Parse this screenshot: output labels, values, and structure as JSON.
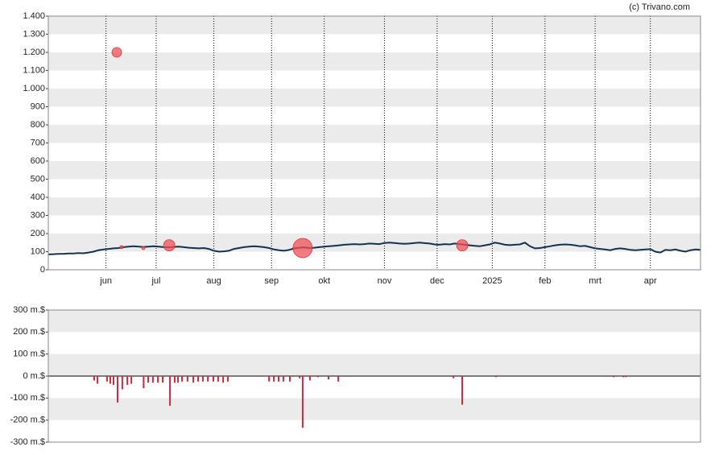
{
  "credit": "(c) Trivano.com",
  "chart_data": [
    {
      "type": "line",
      "x": [
        0,
        2,
        4,
        6,
        8,
        10,
        12,
        14,
        16,
        18,
        20,
        22,
        24,
        26,
        28,
        30,
        32,
        34,
        36,
        38,
        40,
        42,
        44,
        46,
        48,
        50,
        52,
        54,
        56,
        58,
        60,
        62,
        64,
        66,
        68,
        70,
        72,
        74,
        76,
        78,
        80,
        82,
        84,
        86,
        88,
        90,
        92,
        94,
        96,
        98,
        100,
        102,
        104,
        106,
        108,
        110,
        112,
        114,
        116,
        118,
        120,
        122,
        124,
        126,
        128,
        130,
        132,
        134,
        136,
        138,
        140,
        142,
        144,
        146,
        148,
        150,
        152,
        154,
        156,
        158,
        160,
        162,
        164,
        166,
        168,
        170,
        172,
        174,
        176,
        178,
        180,
        182,
        184,
        186,
        188,
        190,
        192,
        194,
        196,
        198,
        200,
        202,
        204,
        206,
        208,
        210,
        212,
        214,
        216,
        218,
        220,
        222,
        224,
        226,
        228,
        230,
        232,
        234,
        236,
        238,
        240,
        242,
        244,
        246,
        248,
        250,
        252,
        254,
        256,
        258,
        260
      ],
      "series": [
        {
          "color": "#12324f",
          "values": [
            85,
            86,
            88,
            88,
            90,
            90,
            92,
            91,
            95,
            100,
            108,
            112,
            115,
            118,
            120,
            125,
            128,
            130,
            128,
            126,
            128,
            130,
            128,
            125,
            124,
            126,
            128,
            125,
            122,
            120,
            118,
            120,
            115,
            105,
            100,
            102,
            105,
            115,
            120,
            125,
            128,
            130,
            128,
            125,
            120,
            112,
            108,
            105,
            110,
            118,
            122,
            124,
            120,
            122,
            125,
            128,
            130,
            132,
            135,
            138,
            140,
            142,
            140,
            142,
            145,
            143,
            142,
            148,
            150,
            148,
            145,
            143,
            145,
            148,
            150,
            147,
            145,
            140,
            138,
            142,
            140,
            145,
            142,
            138,
            135,
            132,
            130,
            135,
            140,
            150,
            145,
            138,
            136,
            138,
            140,
            150,
            130,
            118,
            120,
            125,
            130,
            135,
            138,
            140,
            138,
            135,
            130,
            132,
            125,
            118,
            115,
            112,
            108,
            115,
            118,
            115,
            110,
            108,
            110,
            112,
            114,
            100,
            95,
            110,
            108,
            112,
            105,
            100,
            108,
            112,
            110
          ]
        }
      ],
      "bubbles": {
        "color": "#f0505a",
        "x": [
          27.3,
          29.2,
          37.9,
          48.2,
          101.4,
          165
        ],
        "values": [
          1200,
          125,
          120,
          135,
          120,
          135
        ],
        "sizes": [
          6,
          2,
          2,
          7,
          12,
          7
        ]
      },
      "xlim": [
        0,
        260
      ],
      "xticks": [
        {
          "value": 23,
          "label": "jun"
        },
        {
          "value": 43,
          "label": "jul"
        },
        {
          "value": 66,
          "label": "aug"
        },
        {
          "value": 89,
          "label": "sep"
        },
        {
          "value": 110,
          "label": "okt"
        },
        {
          "value": 134,
          "label": "nov"
        },
        {
          "value": 155,
          "label": "dec"
        },
        {
          "value": 177,
          "label": "2025"
        },
        {
          "value": 198,
          "label": "feb"
        },
        {
          "value": 218,
          "label": "mrt"
        },
        {
          "value": 240,
          "label": "apr"
        }
      ],
      "ylim": [
        0,
        1400
      ],
      "yticks": [
        0,
        100,
        200,
        300,
        400,
        500,
        600,
        700,
        800,
        900,
        {
          "value": 1000,
          "label": "1.000"
        },
        {
          "value": 1100,
          "label": "1.100"
        },
        {
          "value": 1200,
          "label": "1.200"
        },
        {
          "value": 1300,
          "label": "1.300"
        },
        {
          "value": 1400,
          "label": "1.400"
        }
      ],
      "grid": true
    },
    {
      "type": "bar",
      "color": "#d6263b",
      "x": [
        18.3,
        19.6,
        23.4,
        24.7,
        26,
        27.6,
        29.5,
        31.5,
        33.1,
        38,
        39.8,
        41.7,
        43.7,
        45.6,
        48.5,
        50.4,
        51.7,
        53.3,
        55.5,
        57.8,
        59.7,
        61.6,
        63.6,
        65.8,
        67.7,
        69.7,
        71.6,
        88,
        89.9,
        91.8,
        93.7,
        96.3,
        100.2,
        101.4,
        104.3,
        107.5,
        111.7,
        115.6,
        161.5,
        165,
        178.5,
        225.4,
        229.2,
        230.2
      ],
      "values": [
        -20,
        -35,
        -25,
        -35,
        -40,
        -120,
        -60,
        -40,
        -35,
        -55,
        -30,
        -30,
        -30,
        -30,
        -135,
        -30,
        -30,
        -25,
        -25,
        -30,
        -25,
        -25,
        -25,
        -25,
        -25,
        -30,
        -25,
        -25,
        -25,
        -25,
        -25,
        -25,
        -10,
        -235,
        -20,
        -5,
        -15,
        -25,
        -10,
        -130,
        -5,
        -5,
        -5,
        -5
      ],
      "xlim": [
        0,
        260
      ],
      "ylim": [
        -300,
        300
      ],
      "yticks": [
        {
          "value": -300,
          "label": "-300 m.$"
        },
        {
          "value": -200,
          "label": "-200 m.$"
        },
        {
          "value": -100,
          "label": "-100 m.$"
        },
        {
          "value": 0,
          "label": "0 m.$"
        },
        {
          "value": 100,
          "label": "100 m.$"
        },
        {
          "value": 200,
          "label": "200 m.$"
        },
        {
          "value": 300,
          "label": "300 m.$"
        }
      ],
      "grid": true
    }
  ]
}
